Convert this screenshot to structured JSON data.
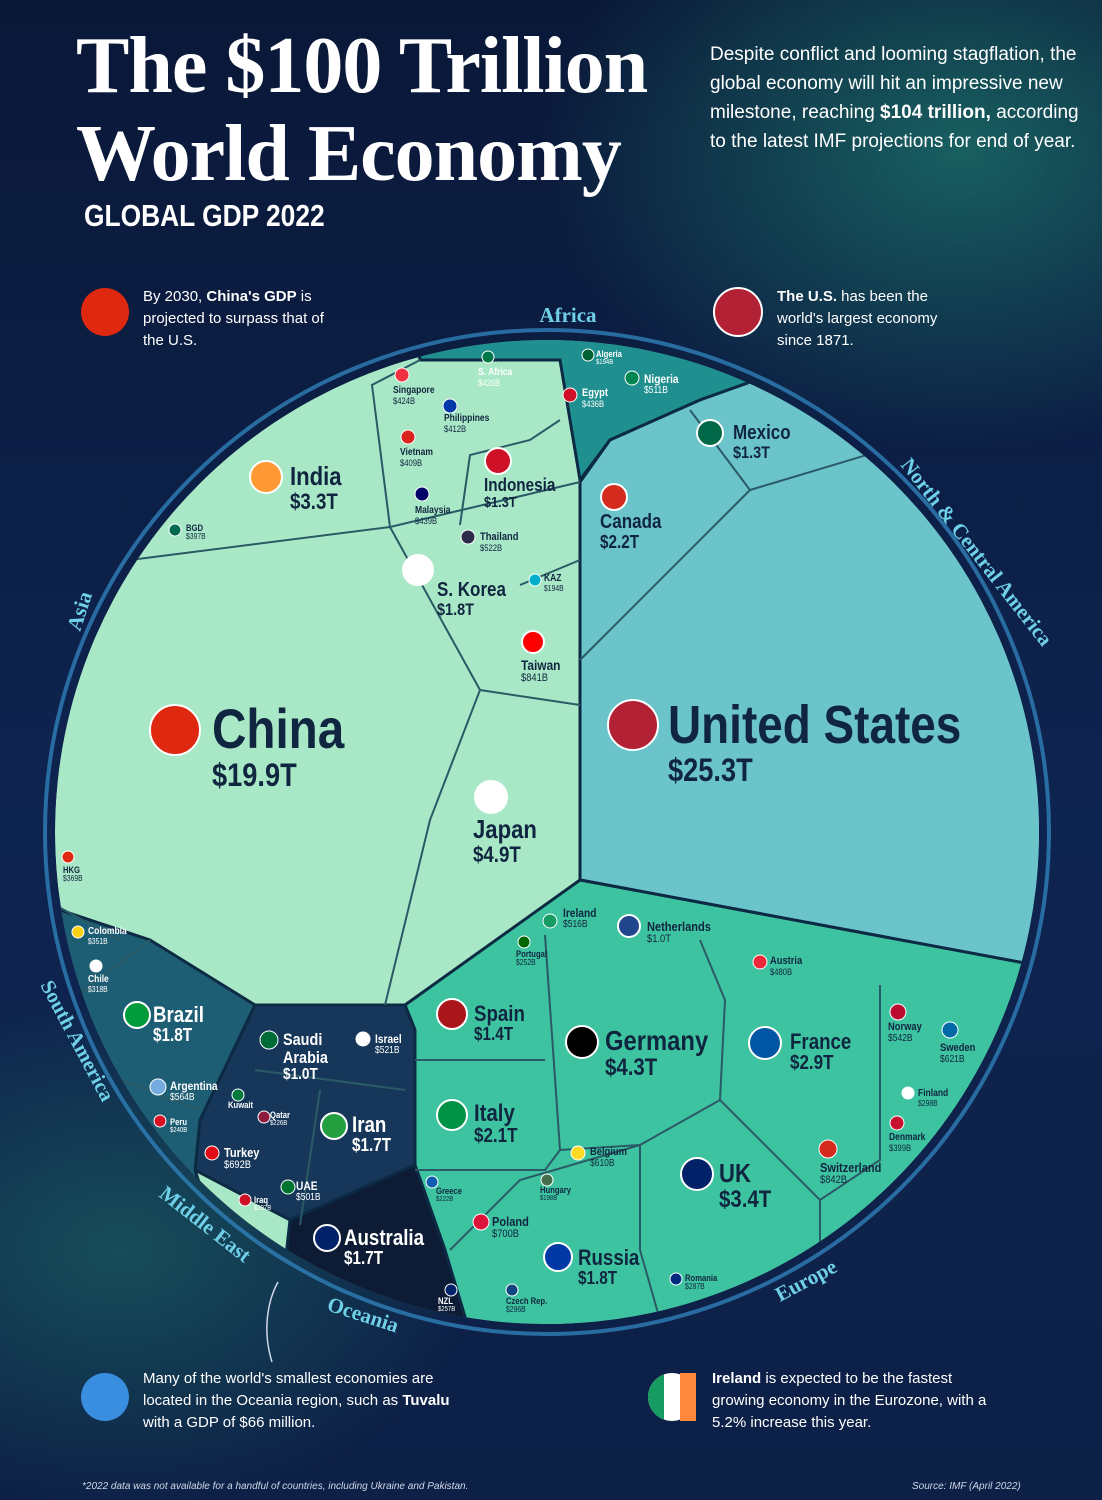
{
  "header": {
    "title_line1": "The $100 Trillion",
    "title_line2": "World Economy",
    "subtitle": "GLOBAL GDP 2022",
    "intro": {
      "pre": "Despite conflict and looming stagflation, the global economy will hit an impressive new milestone, reaching ",
      "bold": "$104 trillion,",
      "post": " according to the latest IMF projections for end of year."
    }
  },
  "callouts": [
    {
      "pre": "By 2030, ",
      "bold": "China's GDP",
      "post": " is projected to surpass that of the U.S."
    },
    {
      "bold": "The U.S.",
      "post": " has been the world's largest economy since 1871."
    },
    {
      "pre": "Many of the world's smallest economies are located in the Oceania region, such as ",
      "bold": "Tuvalu",
      "post": " with a GDP of $66 million."
    },
    {
      "bold": "Ireland",
      "post": " is expected to be the fastest growing economy in the Eurozone, with a 5.2% increase this year."
    }
  ],
  "regions": {
    "africa": "Africa",
    "north_central_america": "North & Central America",
    "asia": "Asia",
    "south_america": "South America",
    "middle_east": "Middle East",
    "oceania": "Oceania",
    "europe": "Europe"
  },
  "countries": [
    {
      "name": "United States",
      "gdp": "$25.3T"
    },
    {
      "name": "China",
      "gdp": "$19.9T"
    },
    {
      "name": "Japan",
      "gdp": "$4.9T"
    },
    {
      "name": "Germany",
      "gdp": "$4.3T"
    },
    {
      "name": "India",
      "gdp": "$3.3T"
    },
    {
      "name": "UK",
      "gdp": "$3.4T"
    },
    {
      "name": "France",
      "gdp": "$2.9T"
    },
    {
      "name": "Canada",
      "gdp": "$2.2T"
    },
    {
      "name": "Italy",
      "gdp": "$2.1T"
    },
    {
      "name": "S. Korea",
      "gdp": "$1.8T"
    },
    {
      "name": "Brazil",
      "gdp": "$1.8T"
    },
    {
      "name": "Russia",
      "gdp": "$1.8T"
    },
    {
      "name": "Australia",
      "gdp": "$1.7T"
    },
    {
      "name": "Iran",
      "gdp": "$1.7T"
    },
    {
      "name": "Spain",
      "gdp": "$1.4T"
    },
    {
      "name": "Mexico",
      "gdp": "$1.3T"
    },
    {
      "name": "Indonesia",
      "gdp": "$1.3T"
    },
    {
      "name": "Saudi Arabia",
      "gdp": "$1.0T"
    },
    {
      "name": "Netherlands",
      "gdp": "$1.0T"
    },
    {
      "name": "Switzerland",
      "gdp": "$842B"
    },
    {
      "name": "Taiwan",
      "gdp": "$841B"
    },
    {
      "name": "Poland",
      "gdp": "$700B"
    },
    {
      "name": "Turkey",
      "gdp": "$692B"
    },
    {
      "name": "Belgium",
      "gdp": "$610B"
    },
    {
      "name": "Sweden",
      "gdp": "$621B"
    },
    {
      "name": "Argentina",
      "gdp": "$564B"
    },
    {
      "name": "Norway",
      "gdp": "$542B"
    },
    {
      "name": "Thailand",
      "gdp": "$522B"
    },
    {
      "name": "Israel",
      "gdp": "$521B"
    },
    {
      "name": "Ireland",
      "gdp": "$516B"
    },
    {
      "name": "Nigeria",
      "gdp": "$511B"
    },
    {
      "name": "UAE",
      "gdp": "$501B"
    },
    {
      "name": "Austria",
      "gdp": "$480B"
    },
    {
      "name": "Malaysia",
      "gdp": "$439B"
    },
    {
      "name": "Egypt",
      "gdp": "$436B"
    },
    {
      "name": "S. Africa",
      "gdp": "$426B"
    },
    {
      "name": "Singapore",
      "gdp": "$424B"
    },
    {
      "name": "Philippines",
      "gdp": "$412B"
    },
    {
      "name": "Vietnam",
      "gdp": "$409B"
    },
    {
      "name": "Denmark",
      "gdp": "$399B"
    },
    {
      "name": "BGD",
      "gdp": "$397B"
    },
    {
      "name": "HKG",
      "gdp": "$369B"
    },
    {
      "name": "Colombia",
      "gdp": "$351B"
    },
    {
      "name": "Chile",
      "gdp": "$318B"
    },
    {
      "name": "Finland",
      "gdp": "$298B"
    },
    {
      "name": "Romania",
      "gdp": "$287B"
    },
    {
      "name": "Iraq",
      "gdp": "$297B"
    },
    {
      "name": "Czech Rep.",
      "gdp": "$296B"
    },
    {
      "name": "Portugal",
      "gdp": "$252B"
    },
    {
      "name": "Peru",
      "gdp": "$240B"
    },
    {
      "name": "Qatar",
      "gdp": "$226B"
    },
    {
      "name": "Greece",
      "gdp": "$222B"
    },
    {
      "name": "NZL",
      "gdp": "$257B"
    },
    {
      "name": "Kuwait"
    },
    {
      "name": "Hungary",
      "gdp": "$198B"
    },
    {
      "name": "Algeria",
      "gdp": "$194B"
    },
    {
      "name": "KAZ",
      "gdp": "$194B"
    }
  ],
  "footnote": "*2022 data was not available for a handful of countries, including Ukraine and Pakistan.",
  "source": "Source: IMF (April 2022)"
}
